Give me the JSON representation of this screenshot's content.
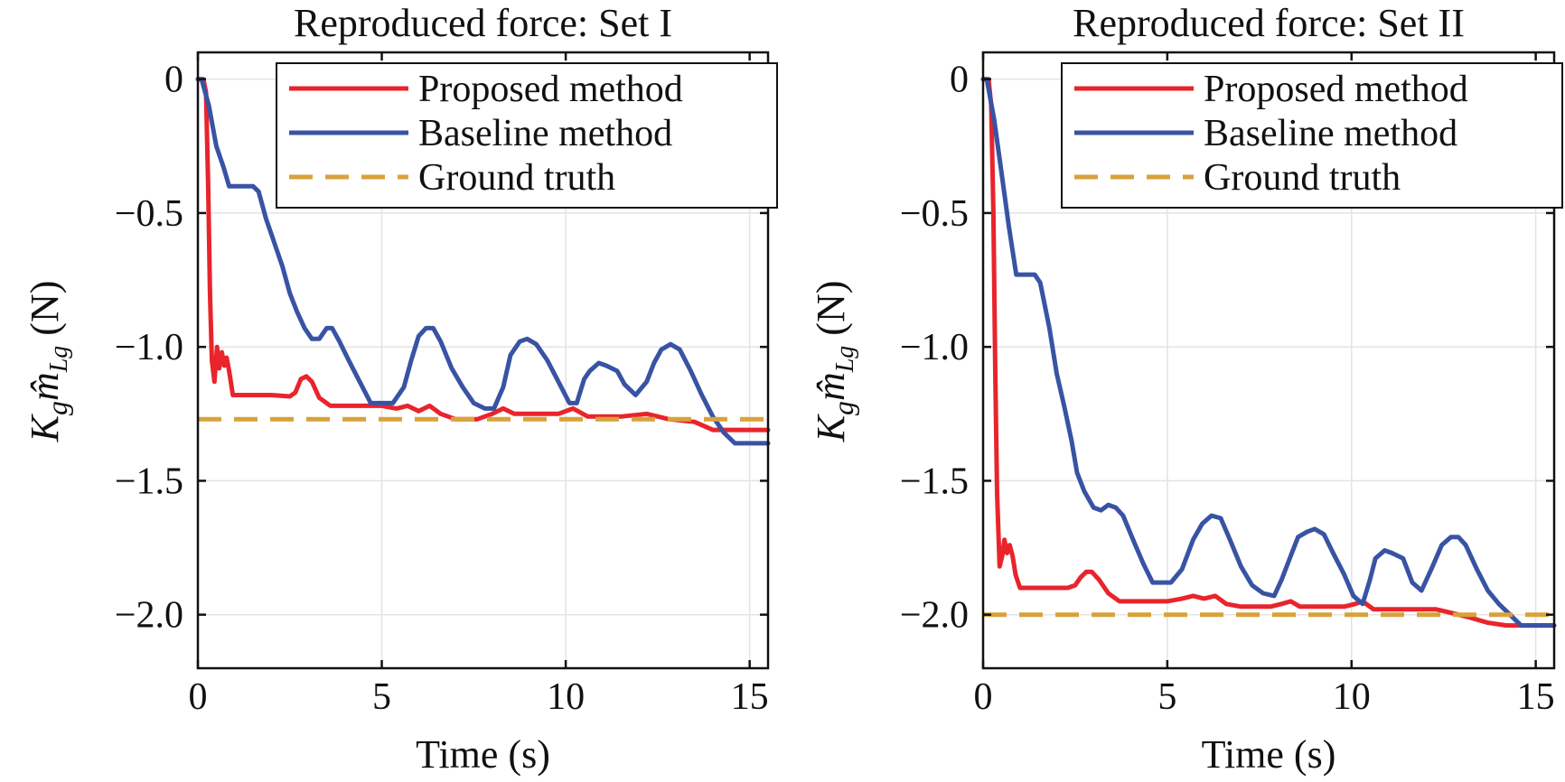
{
  "ylabel": {
    "K": "K",
    "g": "g",
    "m": "m̂",
    "Lg": "Lg",
    "unit": " (N)"
  },
  "colors": {
    "proposed": "#e8242c",
    "baseline": "#3953a4",
    "truth": "#d9a23a",
    "grid": "#e3e3e3"
  },
  "chart_data": [
    {
      "type": "line",
      "title": "Reproduced force: Set I",
      "xlabel": "Time (s)",
      "xlim": [
        0,
        15.5
      ],
      "ylim": [
        -2.2,
        0.1
      ],
      "xticks": [
        0,
        5,
        10,
        15
      ],
      "xtick_labels": [
        "0",
        "5",
        "10",
        "15"
      ],
      "yticks": [
        0,
        -0.5,
        -1.0,
        -1.5,
        -2.0
      ],
      "ytick_labels": [
        "0",
        "−0.5",
        "−1.0",
        "−1.5",
        "−2.0"
      ],
      "grid": true,
      "legend_position": "top-right",
      "series": [
        {
          "name": "Proposed method",
          "style": "solid",
          "points": [
            [
              0,
              0
            ],
            [
              0.15,
              0
            ],
            [
              0.22,
              -0.05
            ],
            [
              0.28,
              -0.4
            ],
            [
              0.33,
              -0.8
            ],
            [
              0.38,
              -1.05
            ],
            [
              0.45,
              -1.13
            ],
            [
              0.52,
              -1.0
            ],
            [
              0.58,
              -1.08
            ],
            [
              0.65,
              -1.02
            ],
            [
              0.72,
              -1.07
            ],
            [
              0.78,
              -1.04
            ],
            [
              0.85,
              -1.09
            ],
            [
              0.95,
              -1.18
            ],
            [
              1.5,
              -1.18
            ],
            [
              2.0,
              -1.18
            ],
            [
              2.5,
              -1.185
            ],
            [
              2.65,
              -1.17
            ],
            [
              2.8,
              -1.12
            ],
            [
              2.95,
              -1.11
            ],
            [
              3.1,
              -1.13
            ],
            [
              3.3,
              -1.19
            ],
            [
              3.6,
              -1.22
            ],
            [
              4.0,
              -1.22
            ],
            [
              5.0,
              -1.22
            ],
            [
              5.4,
              -1.23
            ],
            [
              5.7,
              -1.22
            ],
            [
              6.0,
              -1.24
            ],
            [
              6.3,
              -1.22
            ],
            [
              6.6,
              -1.25
            ],
            [
              7.0,
              -1.27
            ],
            [
              7.6,
              -1.27
            ],
            [
              8.0,
              -1.25
            ],
            [
              8.3,
              -1.23
            ],
            [
              8.6,
              -1.25
            ],
            [
              9.2,
              -1.25
            ],
            [
              9.8,
              -1.25
            ],
            [
              10.2,
              -1.23
            ],
            [
              10.6,
              -1.26
            ],
            [
              11.5,
              -1.26
            ],
            [
              12.2,
              -1.25
            ],
            [
              12.8,
              -1.27
            ],
            [
              13.5,
              -1.28
            ],
            [
              14.0,
              -1.31
            ],
            [
              14.5,
              -1.31
            ],
            [
              15.5,
              -1.31
            ]
          ]
        },
        {
          "name": "Baseline method",
          "style": "solid",
          "points": [
            [
              0,
              0
            ],
            [
              0.1,
              0
            ],
            [
              0.3,
              -0.1
            ],
            [
              0.5,
              -0.25
            ],
            [
              0.7,
              -0.33
            ],
            [
              0.85,
              -0.4
            ],
            [
              1.5,
              -0.4
            ],
            [
              1.65,
              -0.42
            ],
            [
              1.85,
              -0.52
            ],
            [
              2.1,
              -0.62
            ],
            [
              2.3,
              -0.7
            ],
            [
              2.5,
              -0.8
            ],
            [
              2.7,
              -0.87
            ],
            [
              2.9,
              -0.93
            ],
            [
              3.1,
              -0.97
            ],
            [
              3.3,
              -0.97
            ],
            [
              3.5,
              -0.93
            ],
            [
              3.65,
              -0.93
            ],
            [
              3.85,
              -0.98
            ],
            [
              4.1,
              -1.05
            ],
            [
              4.4,
              -1.13
            ],
            [
              4.7,
              -1.21
            ],
            [
              5.3,
              -1.21
            ],
            [
              5.6,
              -1.15
            ],
            [
              5.8,
              -1.05
            ],
            [
              6.0,
              -0.96
            ],
            [
              6.2,
              -0.93
            ],
            [
              6.4,
              -0.93
            ],
            [
              6.6,
              -0.98
            ],
            [
              6.9,
              -1.08
            ],
            [
              7.2,
              -1.15
            ],
            [
              7.5,
              -1.21
            ],
            [
              7.8,
              -1.23
            ],
            [
              8.05,
              -1.23
            ],
            [
              8.3,
              -1.15
            ],
            [
              8.5,
              -1.03
            ],
            [
              8.75,
              -0.98
            ],
            [
              8.95,
              -0.97
            ],
            [
              9.2,
              -0.99
            ],
            [
              9.5,
              -1.05
            ],
            [
              9.8,
              -1.13
            ],
            [
              10.1,
              -1.21
            ],
            [
              10.3,
              -1.21
            ],
            [
              10.5,
              -1.12
            ],
            [
              10.65,
              -1.09
            ],
            [
              10.9,
              -1.06
            ],
            [
              11.1,
              -1.07
            ],
            [
              11.4,
              -1.09
            ],
            [
              11.6,
              -1.14
            ],
            [
              11.9,
              -1.18
            ],
            [
              12.2,
              -1.13
            ],
            [
              12.4,
              -1.06
            ],
            [
              12.6,
              -1.01
            ],
            [
              12.85,
              -0.99
            ],
            [
              13.1,
              -1.01
            ],
            [
              13.4,
              -1.09
            ],
            [
              13.7,
              -1.18
            ],
            [
              14.0,
              -1.26
            ],
            [
              14.3,
              -1.32
            ],
            [
              14.6,
              -1.36
            ],
            [
              15.5,
              -1.36
            ]
          ]
        },
        {
          "name": "Ground truth",
          "style": "dashed",
          "points": [
            [
              0,
              -1.27
            ],
            [
              15.5,
              -1.27
            ]
          ]
        }
      ]
    },
    {
      "type": "line",
      "title": "Reproduced force: Set II",
      "xlabel": "Time (s)",
      "xlim": [
        0,
        15.5
      ],
      "ylim": [
        -2.2,
        0.1
      ],
      "xticks": [
        0,
        5,
        10,
        15
      ],
      "xtick_labels": [
        "0",
        "5",
        "10",
        "15"
      ],
      "yticks": [
        0,
        -0.5,
        -1.0,
        -1.5,
        -2.0
      ],
      "ytick_labels": [
        "0",
        "−0.5",
        "−1.0",
        "−1.5",
        "−2.0"
      ],
      "grid": true,
      "legend_position": "top-right",
      "series": [
        {
          "name": "Proposed method",
          "style": "solid",
          "points": [
            [
              0,
              0
            ],
            [
              0.15,
              0
            ],
            [
              0.22,
              -0.1
            ],
            [
              0.28,
              -0.5
            ],
            [
              0.33,
              -1.1
            ],
            [
              0.38,
              -1.55
            ],
            [
              0.45,
              -1.82
            ],
            [
              0.52,
              -1.78
            ],
            [
              0.58,
              -1.72
            ],
            [
              0.65,
              -1.77
            ],
            [
              0.72,
              -1.74
            ],
            [
              0.8,
              -1.78
            ],
            [
              0.88,
              -1.85
            ],
            [
              1.0,
              -1.9
            ],
            [
              1.5,
              -1.9
            ],
            [
              2.3,
              -1.9
            ],
            [
              2.5,
              -1.89
            ],
            [
              2.65,
              -1.86
            ],
            [
              2.8,
              -1.84
            ],
            [
              2.95,
              -1.84
            ],
            [
              3.15,
              -1.87
            ],
            [
              3.4,
              -1.92
            ],
            [
              3.7,
              -1.95
            ],
            [
              4.5,
              -1.95
            ],
            [
              5.0,
              -1.95
            ],
            [
              5.4,
              -1.94
            ],
            [
              5.7,
              -1.93
            ],
            [
              6.0,
              -1.94
            ],
            [
              6.3,
              -1.93
            ],
            [
              6.6,
              -1.96
            ],
            [
              7.0,
              -1.97
            ],
            [
              7.8,
              -1.97
            ],
            [
              8.1,
              -1.96
            ],
            [
              8.35,
              -1.95
            ],
            [
              8.6,
              -1.97
            ],
            [
              9.4,
              -1.97
            ],
            [
              9.8,
              -1.97
            ],
            [
              10.1,
              -1.96
            ],
            [
              10.3,
              -1.95
            ],
            [
              10.6,
              -1.98
            ],
            [
              11.6,
              -1.98
            ],
            [
              12.3,
              -1.98
            ],
            [
              12.6,
              -1.99
            ],
            [
              13.2,
              -2.01
            ],
            [
              13.7,
              -2.03
            ],
            [
              14.2,
              -2.04
            ],
            [
              15.5,
              -2.04
            ]
          ]
        },
        {
          "name": "Baseline method",
          "style": "solid",
          "points": [
            [
              0,
              0
            ],
            [
              0.1,
              0
            ],
            [
              0.3,
              -0.15
            ],
            [
              0.5,
              -0.35
            ],
            [
              0.7,
              -0.55
            ],
            [
              0.9,
              -0.73
            ],
            [
              1.4,
              -0.73
            ],
            [
              1.55,
              -0.76
            ],
            [
              1.8,
              -0.93
            ],
            [
              2.0,
              -1.1
            ],
            [
              2.2,
              -1.22
            ],
            [
              2.4,
              -1.35
            ],
            [
              2.55,
              -1.47
            ],
            [
              2.75,
              -1.54
            ],
            [
              3.0,
              -1.6
            ],
            [
              3.2,
              -1.61
            ],
            [
              3.4,
              -1.59
            ],
            [
              3.6,
              -1.6
            ],
            [
              3.8,
              -1.63
            ],
            [
              4.1,
              -1.73
            ],
            [
              4.35,
              -1.81
            ],
            [
              4.6,
              -1.88
            ],
            [
              5.1,
              -1.88
            ],
            [
              5.4,
              -1.83
            ],
            [
              5.7,
              -1.72
            ],
            [
              5.95,
              -1.66
            ],
            [
              6.2,
              -1.63
            ],
            [
              6.45,
              -1.64
            ],
            [
              6.7,
              -1.72
            ],
            [
              7.0,
              -1.82
            ],
            [
              7.3,
              -1.89
            ],
            [
              7.6,
              -1.92
            ],
            [
              7.9,
              -1.93
            ],
            [
              8.1,
              -1.87
            ],
            [
              8.35,
              -1.78
            ],
            [
              8.55,
              -1.71
            ],
            [
              8.8,
              -1.69
            ],
            [
              9.0,
              -1.68
            ],
            [
              9.25,
              -1.7
            ],
            [
              9.5,
              -1.77
            ],
            [
              9.8,
              -1.85
            ],
            [
              10.05,
              -1.93
            ],
            [
              10.3,
              -1.96
            ],
            [
              10.5,
              -1.87
            ],
            [
              10.65,
              -1.79
            ],
            [
              10.9,
              -1.76
            ],
            [
              11.1,
              -1.77
            ],
            [
              11.4,
              -1.79
            ],
            [
              11.65,
              -1.88
            ],
            [
              11.9,
              -1.91
            ],
            [
              12.2,
              -1.82
            ],
            [
              12.45,
              -1.74
            ],
            [
              12.7,
              -1.71
            ],
            [
              12.9,
              -1.71
            ],
            [
              13.1,
              -1.74
            ],
            [
              13.4,
              -1.83
            ],
            [
              13.7,
              -1.91
            ],
            [
              14.0,
              -1.96
            ],
            [
              14.3,
              -2.0
            ],
            [
              14.6,
              -2.04
            ],
            [
              15.5,
              -2.04
            ]
          ]
        },
        {
          "name": "Ground truth",
          "style": "dashed",
          "points": [
            [
              0,
              -2.0
            ],
            [
              15.5,
              -2.0
            ]
          ]
        }
      ]
    }
  ]
}
